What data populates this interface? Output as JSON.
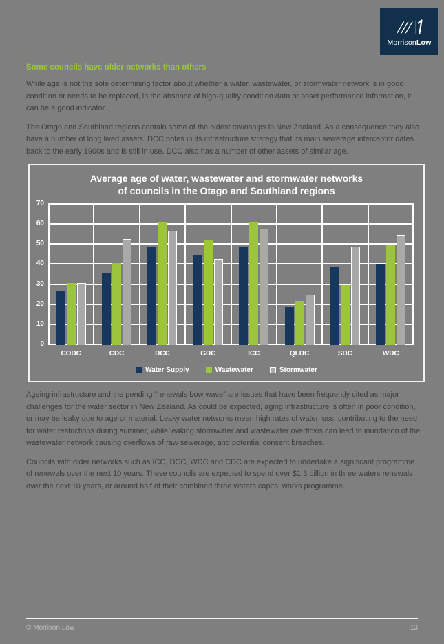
{
  "logo": {
    "name_regular": "Morrison",
    "name_bold": "Low",
    "background": "#12304b"
  },
  "heading": "Some councils have older networks than others",
  "paragraphs": {
    "p1": "While age is not the sole determining factor about whether a water, wastewater, or stormwater network is in good condition or needs to be replaced, in the absence of high-quality condition data or asset performance information, it can be a good indicator.",
    "p2": "The Otago and Southland regions contain some of the oldest townships in New Zealand. As a consequence they also have a number of long lived assets. DCC notes in its infrastructure strategy that its main sewerage interceptor dates back to the early 1900s and is still in use. DCC also has a number of other assets of similar age.",
    "p3": "Ageing infrastructure and the pending “renewals bow wave” are issues that have been frequently cited as major challenges for the water sector in New Zealand. As could be expected, aging infrastructure is often in poor condition, or may be leaky due to age or material.  Leaky water networks mean high rates of water loss, contributing to the need for water restrictions during summer, while leaking stormwater and wastewater overflows can lead to inundation of the wastewater network causing overflows of raw sewerage, and potential consent breaches.",
    "p4": "Councils with older networks such as ICC, DCC, WDC and CDC are expected to undertake a significant programme of renewals over the next 10 years.  These councils are expected to spend over $1.3 billion in three waters renewals over the next 10 years, or around half of their combined three waters capital works programme."
  },
  "chart_data": {
    "type": "bar",
    "title": "Average age of water, wastewater and stormwater networks of councils in the Otago and Southland regions",
    "title_lines": [
      "Average age of water, wastewater and stormwater networks",
      "of councils in the Otago and Southland regions"
    ],
    "categories": [
      "CODC",
      "CDC",
      "DCC",
      "GDC",
      "ICC",
      "QLDC",
      "SDC",
      "WDC"
    ],
    "series": [
      {
        "name": "Water Supply",
        "color": "#17375c",
        "outline": null,
        "values": [
          27,
          36,
          49,
          45,
          49,
          19,
          39,
          40
        ]
      },
      {
        "name": "Wastewater",
        "color": "#9cc43d",
        "outline": null,
        "values": [
          31,
          41,
          61,
          52,
          61,
          22,
          30,
          50
        ]
      },
      {
        "name": "Stormwater",
        "color": "#a9a9a9",
        "outline": "#ffffff",
        "values": [
          31,
          53,
          57,
          43,
          58,
          25,
          49,
          55
        ]
      }
    ],
    "ylim": [
      0,
      70
    ],
    "ytick_step": 10,
    "grid": true,
    "legend_position": "bottom",
    "text_color": "#ffffff"
  },
  "footer": {
    "copyright": "© Morrison Low",
    "page_number": "13"
  }
}
